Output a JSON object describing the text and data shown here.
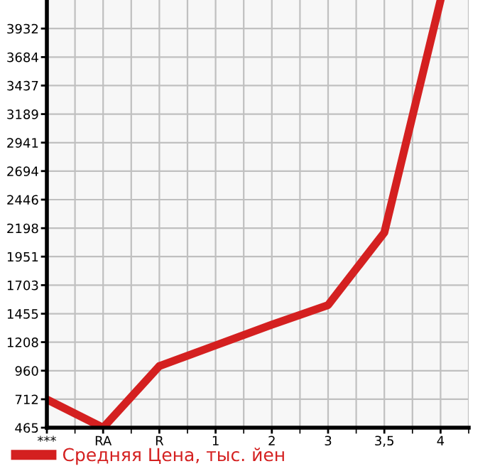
{
  "chart_data": {
    "type": "line",
    "categories": [
      "***",
      "RA",
      "R",
      "1",
      "2",
      "3",
      "3,5",
      "4"
    ],
    "series": [
      {
        "name": "Средняя Цена, тыс. йен",
        "color": "#d42020",
        "values": [
          710,
          465,
          1000,
          1180,
          1360,
          1530,
          2160,
          4180
        ]
      }
    ],
    "ylim": [
      465,
      4180
    ],
    "yticks": [
      465,
      712,
      960,
      1208,
      1455,
      1703,
      1951,
      2198,
      2446,
      2694,
      2941,
      3189,
      3437,
      3684,
      3932
    ],
    "grid": true,
    "legend": "bottom",
    "marker": "none",
    "line_style": "solid"
  }
}
